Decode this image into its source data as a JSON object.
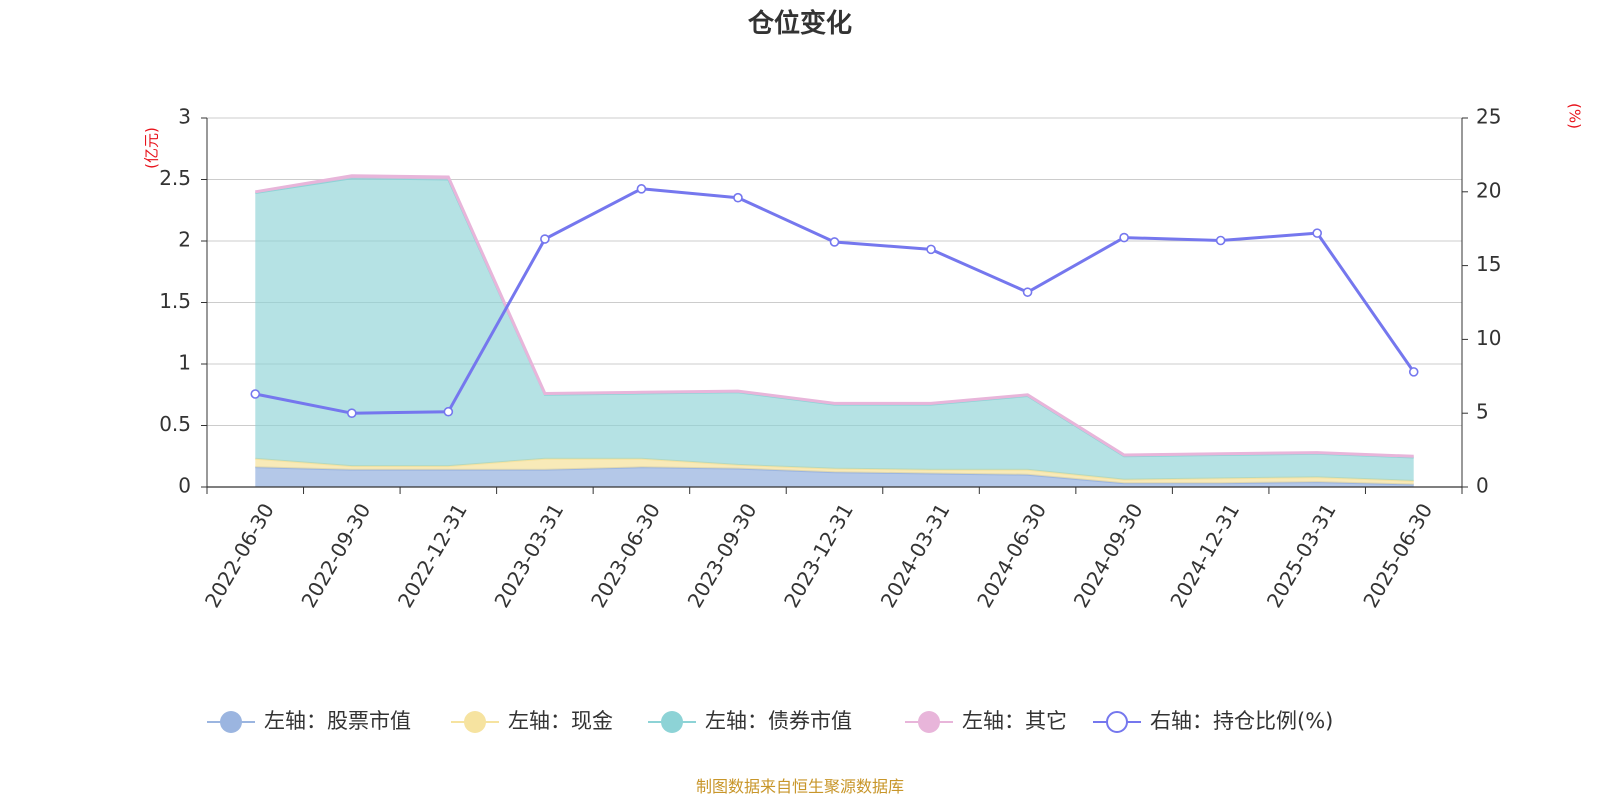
{
  "colors": {
    "stock": "#9bb5e0",
    "cash": "#f6e3a0",
    "bond": "#8dd3d6",
    "other": "#e8b5da",
    "ratio": "#7577ee",
    "grid": "#cccccc",
    "axis": "#333333",
    "unit": "#e8121b",
    "source": "#c8962a"
  },
  "chart_data": {
    "type": "area",
    "title": "仓位变化",
    "source_text": "制图数据来自恒生聚源数据库",
    "left_axis": {
      "unit_label": "(亿元)",
      "ylim": [
        0,
        3
      ],
      "ticks": [
        "0",
        "0.5",
        "1",
        "1.5",
        "2",
        "2.5",
        "3"
      ]
    },
    "right_axis": {
      "unit_label": "(%)",
      "ylim": [
        0,
        25
      ],
      "ticks": [
        "0",
        "5",
        "10",
        "15",
        "20",
        "25"
      ]
    },
    "grid": true,
    "legend_position": "bottom",
    "categories": [
      "2022-06-30",
      "2022-09-30",
      "2022-12-31",
      "2023-03-31",
      "2023-06-30",
      "2023-09-30",
      "2023-12-31",
      "2024-03-31",
      "2024-06-30",
      "2024-09-30",
      "2024-12-31",
      "2025-03-31",
      "2025-06-30"
    ],
    "stacked_series": [
      {
        "key": "stock",
        "name": "左轴：股票市值",
        "values": [
          0.16,
          0.14,
          0.14,
          0.14,
          0.16,
          0.15,
          0.12,
          0.11,
          0.1,
          0.03,
          0.03,
          0.04,
          0.02
        ]
      },
      {
        "key": "cash",
        "name": "左轴：现金",
        "values": [
          0.07,
          0.03,
          0.03,
          0.09,
          0.07,
          0.03,
          0.03,
          0.03,
          0.04,
          0.03,
          0.04,
          0.04,
          0.03
        ]
      },
      {
        "key": "bond",
        "name": "左轴：债券市值",
        "values": [
          2.16,
          2.34,
          2.33,
          0.52,
          0.53,
          0.59,
          0.52,
          0.53,
          0.6,
          0.19,
          0.19,
          0.19,
          0.19
        ]
      },
      {
        "key": "other",
        "name": "左轴：其它",
        "values": [
          0.01,
          0.02,
          0.02,
          0.01,
          0.01,
          0.01,
          0.01,
          0.01,
          0.01,
          0.01,
          0.01,
          0.01,
          0.01
        ]
      }
    ],
    "line_series": {
      "key": "ratio",
      "name": "右轴：持仓比例(%)",
      "values": [
        6.3,
        5.0,
        5.1,
        16.8,
        20.2,
        19.6,
        16.6,
        16.1,
        13.2,
        16.9,
        16.7,
        17.2,
        7.8
      ]
    }
  }
}
